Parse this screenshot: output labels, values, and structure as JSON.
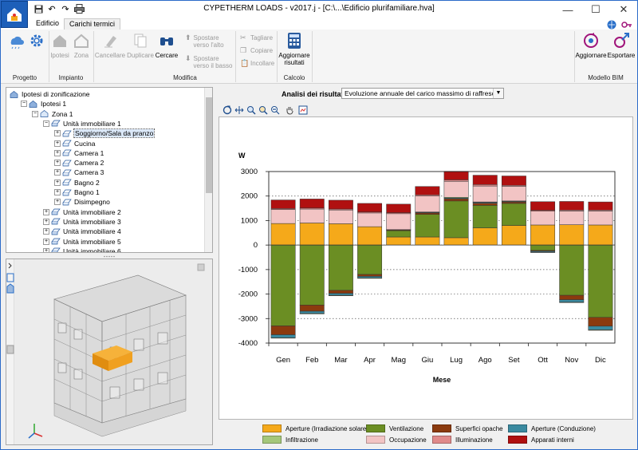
{
  "app": {
    "title": "CYPETHERM LOADS - v2017.j - [C:\\...\\Edificio plurifamiliare.hva]",
    "window_controls": [
      "minimize",
      "maximize",
      "close"
    ]
  },
  "tabs": [
    {
      "label": "Edificio",
      "active": false
    },
    {
      "label": "Carichi termici",
      "active": true
    }
  ],
  "ribbon": {
    "buttons": {
      "ipotesi": "Ipotesi",
      "zona": "Zona",
      "cancellare": "Cancellare",
      "duplicare": "Duplicare",
      "cercare": "Cercare",
      "spostare_alto": "Spostare verso l'alto",
      "spostare_basso": "Spostare verso il basso",
      "tagliare": "Tagliare",
      "copiare": "Copiare",
      "incollare": "Incollare",
      "aggiornare_risultati": "Aggiornare risultati",
      "aggiornare": "Aggiornare",
      "esportare": "Esportare"
    },
    "groups": {
      "progetto": "Progetto",
      "impianto": "Impianto",
      "modifica": "Modifica",
      "calcolo": "Calcolo",
      "modello_bim": "Modello BIM"
    }
  },
  "tree": [
    {
      "label": "Ipotesi di zonificazione",
      "level": 0,
      "expander": "",
      "icon": "building-icon"
    },
    {
      "label": "Ipotesi 1",
      "level": 1,
      "expander": "−",
      "icon": "building-icon"
    },
    {
      "label": "Zona 1",
      "level": 2,
      "expander": "−",
      "icon": "zone-icon"
    },
    {
      "label": "Unità immobiliare 1",
      "level": 3,
      "expander": "−",
      "icon": "unit-icon"
    },
    {
      "label": "Soggiorno/Sala da pranzo",
      "level": 4,
      "expander": "+",
      "icon": "room-icon",
      "selected": true
    },
    {
      "label": "Cucina",
      "level": 4,
      "expander": "+",
      "icon": "room-icon"
    },
    {
      "label": "Camera 1",
      "level": 4,
      "expander": "+",
      "icon": "room-icon"
    },
    {
      "label": "Camera 2",
      "level": 4,
      "expander": "+",
      "icon": "room-icon"
    },
    {
      "label": "Camera 3",
      "level": 4,
      "expander": "+",
      "icon": "room-icon"
    },
    {
      "label": "Bagno 2",
      "level": 4,
      "expander": "+",
      "icon": "room-icon"
    },
    {
      "label": "Bagno 1",
      "level": 4,
      "expander": "+",
      "icon": "room-icon"
    },
    {
      "label": "Disimpegno",
      "level": 4,
      "expander": "+",
      "icon": "room-icon"
    },
    {
      "label": "Unità immobiliare 2",
      "level": 3,
      "expander": "+",
      "icon": "unit-icon"
    },
    {
      "label": "Unità immobiliare 3",
      "level": 3,
      "expander": "+",
      "icon": "unit-icon"
    },
    {
      "label": "Unità immobiliare 4",
      "level": 3,
      "expander": "+",
      "icon": "unit-icon"
    },
    {
      "label": "Unità immobiliare 5",
      "level": 3,
      "expander": "+",
      "icon": "unit-icon"
    },
    {
      "label": "Unità immobiliare 6",
      "level": 3,
      "expander": "+",
      "icon": "unit-icon"
    }
  ],
  "results": {
    "label": "Analisi dei risultati",
    "selected": "Evoluzione annuale del carico massimo di raffrescamento"
  },
  "colors": {
    "aperture_solare": "#f5a91a",
    "ventilazione": "#6b8e23",
    "superfici_opache": "#8b3a0e",
    "aperture_conduzione": "#3a8aa0",
    "infiltrazione": "#a4c77a",
    "occupazione": "#f2c4c4",
    "illuminazione": "#e08a8a",
    "apparati_interni": "#b01010"
  },
  "chart_data": {
    "type": "bar",
    "stacked": true,
    "ylabel": "W",
    "xlabel": "Mese",
    "ylim": [
      -4000,
      3000
    ],
    "yticks": [
      3000,
      2000,
      1000,
      0,
      -1000,
      -2000,
      -3000,
      -4000
    ],
    "grid": "dashed horizontal",
    "legend_position": "bottom",
    "categories": [
      "Gen",
      "Feb",
      "Mar",
      "Apr",
      "Mag",
      "Giu",
      "Lug",
      "Ago",
      "Set",
      "Ott",
      "Nov",
      "Dic"
    ],
    "series": [
      {
        "name": "Aperture (Irradiazione solare)",
        "color_key": "aperture_solare",
        "values": [
          880,
          900,
          870,
          750,
          330,
          330,
          300,
          700,
          800,
          820,
          830,
          820
        ]
      },
      {
        "name": "Ventilazione",
        "color_key": "ventilazione",
        "values": [
          -3300,
          -2450,
          -1850,
          -1200,
          260,
          920,
          1500,
          920,
          900,
          -220,
          -2050,
          -2950
        ]
      },
      {
        "name": "Superfici opache",
        "color_key": "superfici_opache",
        "values": [
          -360,
          -250,
          -120,
          -80,
          30,
          60,
          90,
          90,
          60,
          -30,
          -180,
          -360
        ]
      },
      {
        "name": "Aperture (Conduzione)",
        "color_key": "aperture_conduzione",
        "values": [
          -120,
          -90,
          -80,
          -60,
          10,
          20,
          30,
          30,
          20,
          -40,
          -100,
          -150
        ]
      },
      {
        "name": "Infiltrazione",
        "color_key": "infiltrazione",
        "values": [
          -20,
          -20,
          -20,
          -20,
          0,
          20,
          30,
          20,
          20,
          -10,
          -20,
          -20
        ]
      },
      {
        "name": "Occupazione",
        "color_key": "occupazione",
        "values": [
          570,
          570,
          560,
          560,
          650,
          650,
          650,
          650,
          600,
          560,
          560,
          570
        ]
      },
      {
        "name": "Illuminazione",
        "color_key": "illuminazione",
        "values": [
          40,
          40,
          40,
          40,
          40,
          50,
          60,
          60,
          40,
          40,
          40,
          40
        ]
      },
      {
        "name": "Apparati interni",
        "color_key": "apparati_interni",
        "values": [
          350,
          370,
          360,
          350,
          350,
          340,
          350,
          380,
          380,
          350,
          350,
          330
        ]
      }
    ]
  }
}
